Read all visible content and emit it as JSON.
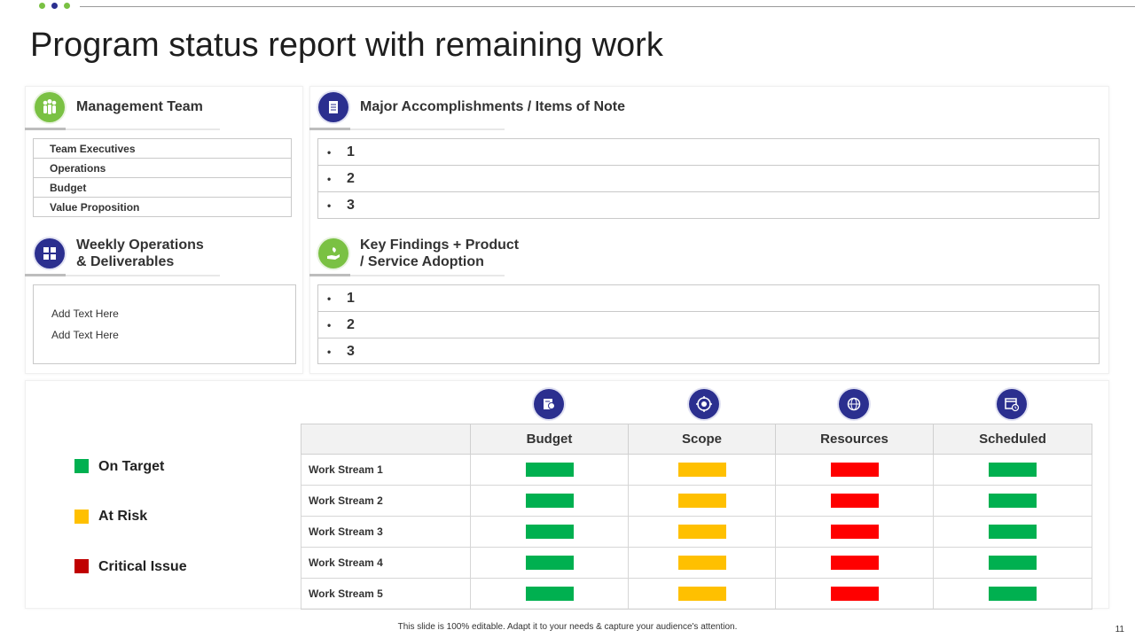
{
  "title": "Program status report with remaining work",
  "colors": {
    "green": "#00b050",
    "yellow": "#ffc000",
    "red": "#ff0000",
    "dark_red": "#c00000",
    "navy": "#2b2f8f",
    "light_green": "#7ac143"
  },
  "management": {
    "title": "Management Team",
    "icon": "team-icon",
    "items": [
      "Team Executives",
      "Operations",
      "Budget",
      "Value Proposition"
    ]
  },
  "accomplishments": {
    "title": "Major Accomplishments / Items of Note",
    "icon": "document-icon",
    "items": [
      "1",
      "2",
      "3"
    ]
  },
  "weekly": {
    "title_line1": "Weekly Operations",
    "title_line2": "& Deliverables",
    "icon": "grid-board-icon",
    "lines": [
      "Add Text Here",
      "Add Text Here"
    ]
  },
  "findings": {
    "title_line1": "Key Findings + Product",
    "title_line2": "/ Service Adoption",
    "icon": "hand-plant-icon",
    "items": [
      "1",
      "2",
      "3"
    ]
  },
  "legend": [
    {
      "label": "On Target",
      "color": "#00b050"
    },
    {
      "label": "At Risk",
      "color": "#ffc000"
    },
    {
      "label": "Critical Issue",
      "color": "#c00000"
    }
  ],
  "status": {
    "columns": [
      {
        "label": "Budget",
        "icon": "budget-report-icon"
      },
      {
        "label": "Scope",
        "icon": "target-icon"
      },
      {
        "label": "Resources",
        "icon": "globe-icon"
      },
      {
        "label": "Scheduled",
        "icon": "calendar-clock-icon"
      }
    ],
    "rows": [
      {
        "label": "Work Stream 1",
        "status": [
          "On Target",
          "At Risk",
          "Critical Issue",
          "On Target"
        ]
      },
      {
        "label": "Work Stream 2",
        "status": [
          "On Target",
          "At Risk",
          "Critical Issue",
          "On Target"
        ]
      },
      {
        "label": "Work Stream 3",
        "status": [
          "On Target",
          "At Risk",
          "Critical Issue",
          "On Target"
        ]
      },
      {
        "label": "Work Stream 4",
        "status": [
          "On Target",
          "At Risk",
          "Critical Issue",
          "On Target"
        ]
      },
      {
        "label": "Work Stream 5",
        "status": [
          "On Target",
          "At Risk",
          "Critical Issue",
          "On Target"
        ]
      }
    ]
  },
  "footer": "This slide is 100% editable.  Adapt it to your needs & capture your audience's attention.",
  "page_number": "11"
}
